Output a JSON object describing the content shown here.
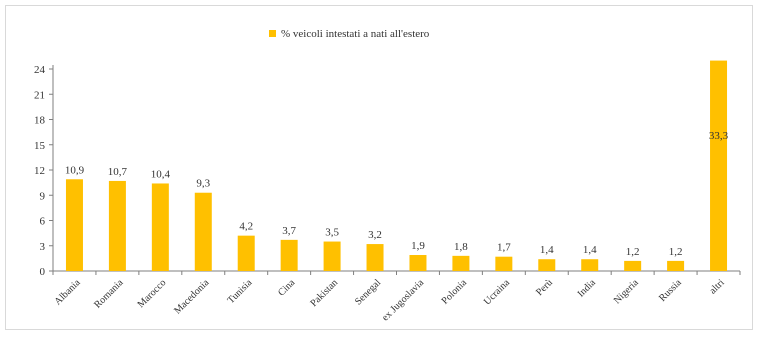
{
  "chart_data": {
    "type": "bar",
    "legend": {
      "label": "% veicoli intestati a nati all'estero",
      "position": "top",
      "color": "#FFC000"
    },
    "categories": [
      "Albania",
      "Romania",
      "Marocco",
      "Macedonia",
      "Tunisia",
      "Cina",
      "Pakistan",
      "Senegal",
      "ex Jugoslavia",
      "Polonia",
      "Ucraina",
      "Perù",
      "India",
      "Nigeria",
      "Russia",
      "altri"
    ],
    "values": [
      10.9,
      10.7,
      10.4,
      9.3,
      4.2,
      3.7,
      3.5,
      3.2,
      1.9,
      1.8,
      1.7,
      1.4,
      1.4,
      1.2,
      1.2,
      33.3
    ],
    "data_labels": [
      "10,9",
      "10,7",
      "10,4",
      "9,3",
      "4,2",
      "3,7",
      "3,5",
      "3,2",
      "1,9",
      "1,8",
      "1,7",
      "1,4",
      "1,4",
      "1,2",
      "1,2",
      "33,3"
    ],
    "ylim": [
      0,
      24
    ],
    "yticks": [
      0,
      3,
      6,
      9,
      12,
      15,
      18,
      21,
      24
    ],
    "bar_color": "#FFC000",
    "grid": false
  }
}
